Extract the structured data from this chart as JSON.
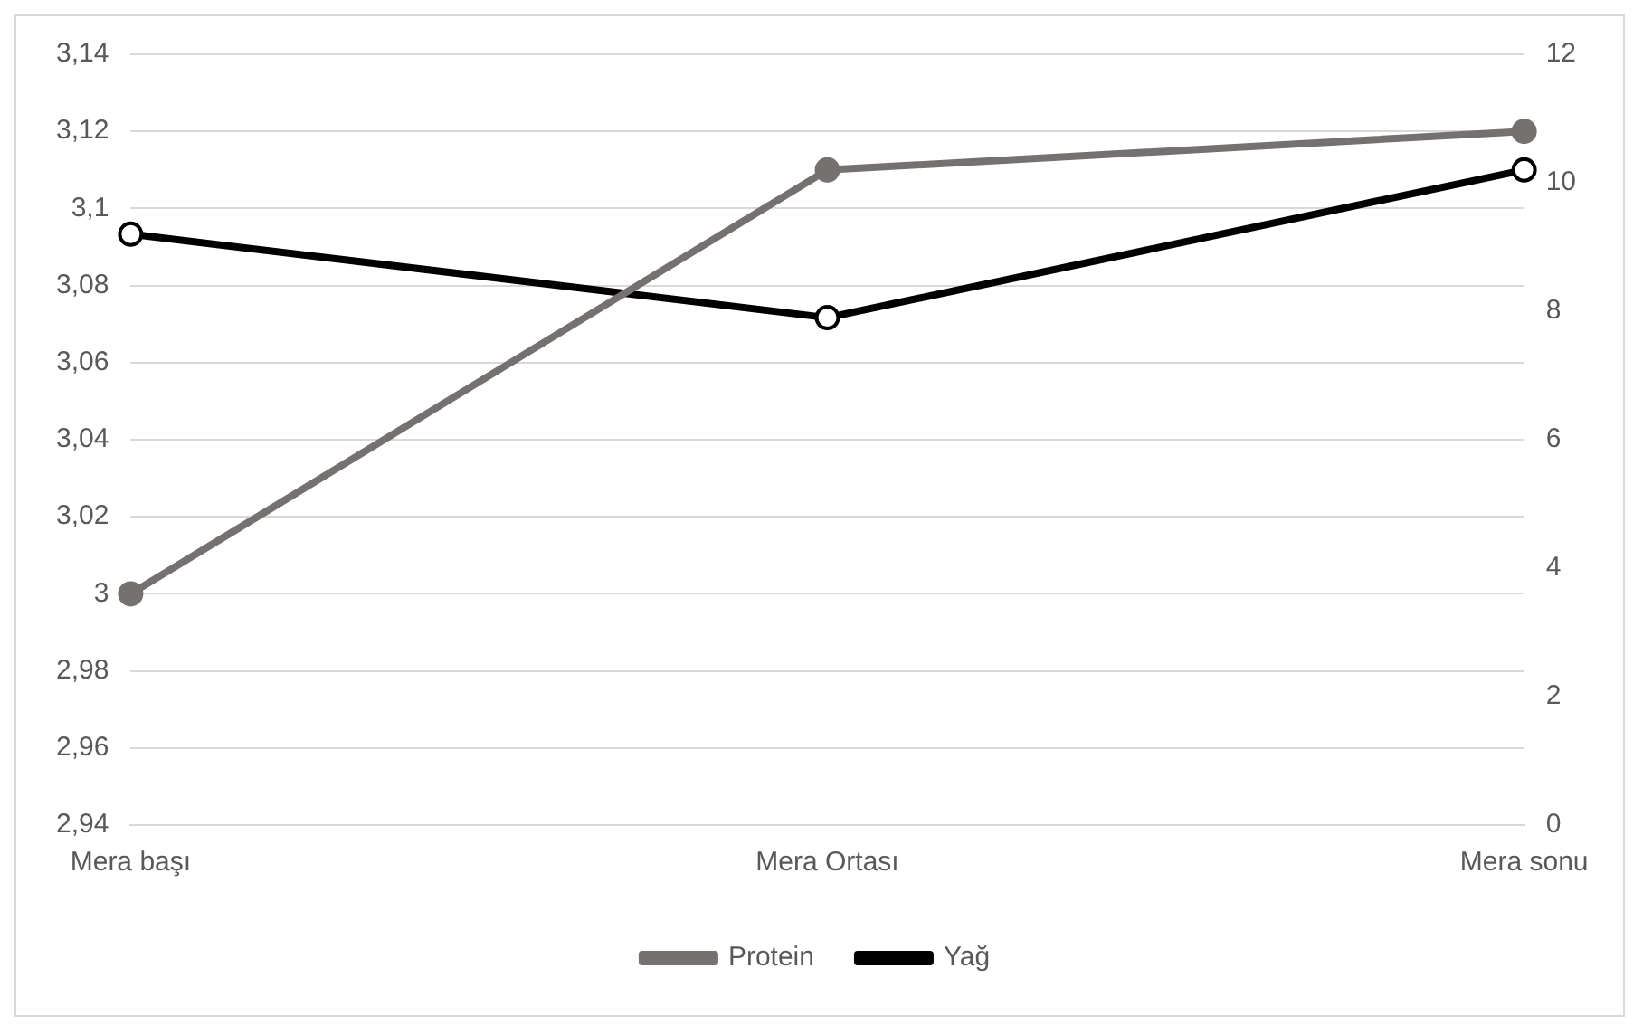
{
  "chart_data": {
    "type": "line",
    "categories": [
      "Mera başı",
      "Mera Ortası",
      "Mera sonu"
    ],
    "series": [
      {
        "name": "Protein",
        "color": "#767171",
        "values": [
          3.0,
          3.11,
          3.12
        ]
      },
      {
        "name": "Yağ",
        "color": "#000000",
        "values": [
          9.2,
          7.9,
          10.2
        ],
        "axis": "y2"
      }
    ],
    "ylim": [
      2.94,
      3.14
    ],
    "yticks": [
      {
        "value": 2.94,
        "label": "2,94"
      },
      {
        "value": 2.96,
        "label": "2,96"
      },
      {
        "value": 2.98,
        "label": "2,98"
      },
      {
        "value": 3,
        "label": "3"
      },
      {
        "value": 3.02,
        "label": "3,02"
      },
      {
        "value": 3.04,
        "label": "3,04"
      },
      {
        "value": 3.06,
        "label": "3,06"
      },
      {
        "value": 3.08,
        "label": "3,08"
      },
      {
        "value": 3.1,
        "label": "3,1"
      },
      {
        "value": 3.12,
        "label": "3,12"
      },
      {
        "value": 3.14,
        "label": "3,14"
      }
    ],
    "y2lim": [
      0,
      12
    ],
    "y2ticks": [
      0,
      2,
      4,
      6,
      8,
      10,
      12
    ],
    "grid": "y",
    "legend": "bottom",
    "marker": "circle",
    "line_style": "solid"
  }
}
